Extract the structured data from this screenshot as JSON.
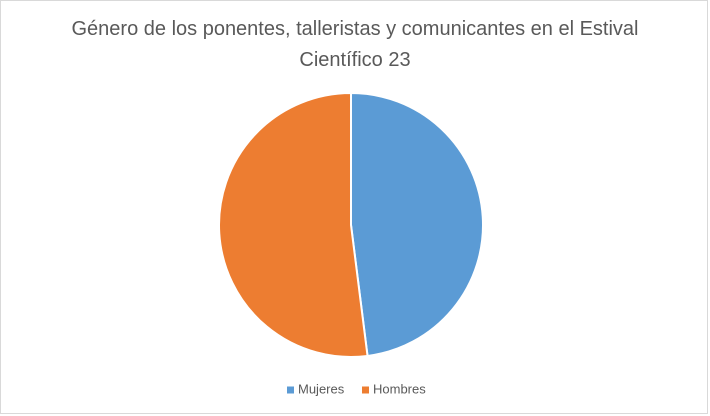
{
  "chart_data": {
    "type": "pie",
    "title": "Género de los ponentes, talleristas y comunicantes en el Estival Científico 23",
    "categories": [
      "Mujeres",
      "Hombres"
    ],
    "values": [
      48,
      52
    ],
    "colors": [
      "#5b9bd5",
      "#ed7d31"
    ],
    "legend": "bottom"
  }
}
